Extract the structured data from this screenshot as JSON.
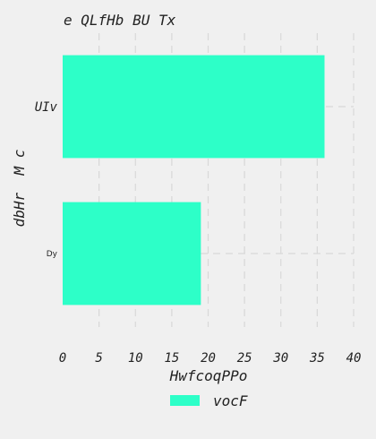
{
  "chart_data": {
    "type": "bar",
    "orientation": "horizontal",
    "title": "e QLfHb BU Tx",
    "xlabel": "HwfcoqPPo",
    "ylabel": "dbHr  M c",
    "categories": [
      "UIv",
      "Dy"
    ],
    "series": [
      {
        "name": "vocF",
        "values": [
          36,
          19
        ]
      }
    ],
    "xlim": [
      0,
      40
    ],
    "xticks": [
      0,
      5,
      10,
      15,
      20,
      25,
      30,
      35,
      40
    ],
    "grid": true,
    "legend_position": "bottom-center",
    "bar_color": "#2dffc8",
    "background_color": "#f0f0f0",
    "grid_color": "#d8d8d8"
  }
}
